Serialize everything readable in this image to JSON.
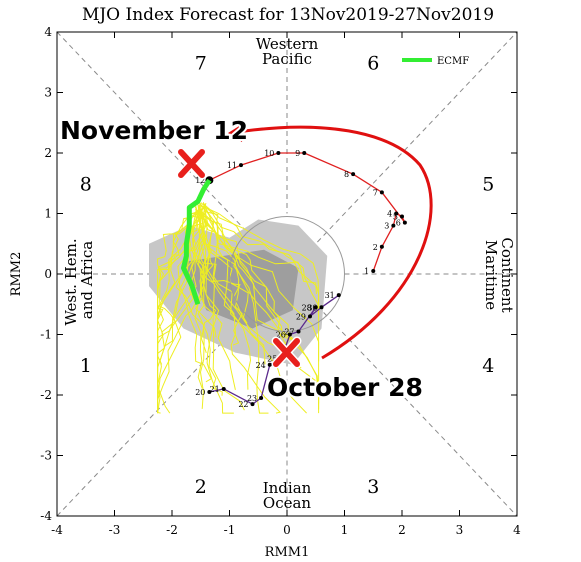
{
  "chart_data": {
    "type": "line",
    "title": "MJO Index Forecast for 13Nov2019-27Nov2019",
    "xlabel": "RMM1",
    "ylabel": "RMM2",
    "xlim": [
      -4,
      4
    ],
    "ylim": [
      -4,
      4
    ],
    "x_ticks": [
      "-4",
      "-3",
      "-2",
      "-1",
      "0",
      "1",
      "2",
      "3",
      "4"
    ],
    "y_ticks": [
      "-4",
      "-3",
      "-2",
      "-1",
      "0",
      "1",
      "2",
      "3",
      "4"
    ],
    "grid": "diagonal phase lines",
    "phase_labels": [
      {
        "text": "7",
        "x": -1.5,
        "y": 3.5
      },
      {
        "text": "6",
        "x": 1.5,
        "y": 3.5
      },
      {
        "text": "8",
        "x": -3.5,
        "y": 1.5
      },
      {
        "text": "5",
        "x": 3.5,
        "y": 1.5
      },
      {
        "text": "1",
        "x": -3.5,
        "y": -1.5
      },
      {
        "text": "4",
        "x": 3.5,
        "y": -1.5
      },
      {
        "text": "2",
        "x": -1.5,
        "y": -3.5
      },
      {
        "text": "3",
        "x": 1.5,
        "y": -3.5
      }
    ],
    "region_labels": {
      "top": [
        "Western",
        "Pacific"
      ],
      "bottom": [
        "Indian",
        "Ocean"
      ],
      "left": [
        "West. Hem.",
        "and Africa"
      ],
      "right": [
        "Maritime",
        "Continent"
      ]
    },
    "legend": {
      "position": "top-right",
      "label": "ECMF",
      "color": "#33ee33"
    },
    "series": [
      {
        "name": "observed_october",
        "color": "#5b2a8c",
        "points": [
          {
            "label": "20",
            "x": -1.35,
            "y": -1.95
          },
          {
            "label": "21",
            "x": -1.1,
            "y": -1.9
          },
          {
            "label": "22",
            "x": -0.6,
            "y": -2.15
          },
          {
            "label": "23",
            "x": -0.45,
            "y": -2.05
          },
          {
            "label": "24",
            "x": -0.3,
            "y": -1.5
          },
          {
            "label": "25",
            "x": -0.1,
            "y": -1.4
          },
          {
            "label": "26",
            "x": 0.05,
            "y": -1.0
          },
          {
            "label": "27",
            "x": 0.2,
            "y": -0.95
          },
          {
            "label": "28",
            "x": 0.5,
            "y": -0.55
          },
          {
            "label": "29",
            "x": 0.4,
            "y": -0.7
          },
          {
            "label": "30",
            "x": 0.6,
            "y": -0.55
          },
          {
            "label": "31",
            "x": 0.9,
            "y": -0.35
          }
        ]
      },
      {
        "name": "observed_november",
        "color": "#e02020",
        "points": [
          {
            "label": "1",
            "x": 1.5,
            "y": 0.05
          },
          {
            "label": "2",
            "x": 1.65,
            "y": 0.45
          },
          {
            "label": "3",
            "x": 1.85,
            "y": 0.8
          },
          {
            "label": "4",
            "x": 1.9,
            "y": 1.0
          },
          {
            "label": "5",
            "x": 2.0,
            "y": 0.95
          },
          {
            "label": "6",
            "x": 2.05,
            "y": 0.85
          },
          {
            "label": "7",
            "x": 1.65,
            "y": 1.35
          },
          {
            "label": "8",
            "x": 1.15,
            "y": 1.65
          },
          {
            "label": "9",
            "x": 0.3,
            "y": 2.0
          },
          {
            "label": "10",
            "x": -0.15,
            "y": 2.0
          },
          {
            "label": "11",
            "x": -0.8,
            "y": 1.8
          },
          {
            "label": "12",
            "x": -1.35,
            "y": 1.55
          }
        ]
      },
      {
        "name": "ECMF",
        "color": "#33ee33",
        "points": [
          {
            "x": -1.35,
            "y": 1.55
          },
          {
            "x": -1.45,
            "y": 1.4
          },
          {
            "x": -1.55,
            "y": 1.2
          },
          {
            "x": -1.7,
            "y": 1.1
          },
          {
            "x": -1.7,
            "y": 0.8
          },
          {
            "x": -1.75,
            "y": 0.5
          },
          {
            "x": -1.75,
            "y": 0.3
          },
          {
            "x": -1.8,
            "y": 0.1
          },
          {
            "x": -1.65,
            "y": -0.2
          },
          {
            "x": -1.55,
            "y": -0.5
          }
        ]
      }
    ],
    "annotations": [
      {
        "text": "November 12",
        "color": "#000000",
        "outline": "#ffffff"
      },
      {
        "text": "October 28",
        "color": "#000000",
        "outline": "#ffffff"
      }
    ]
  }
}
